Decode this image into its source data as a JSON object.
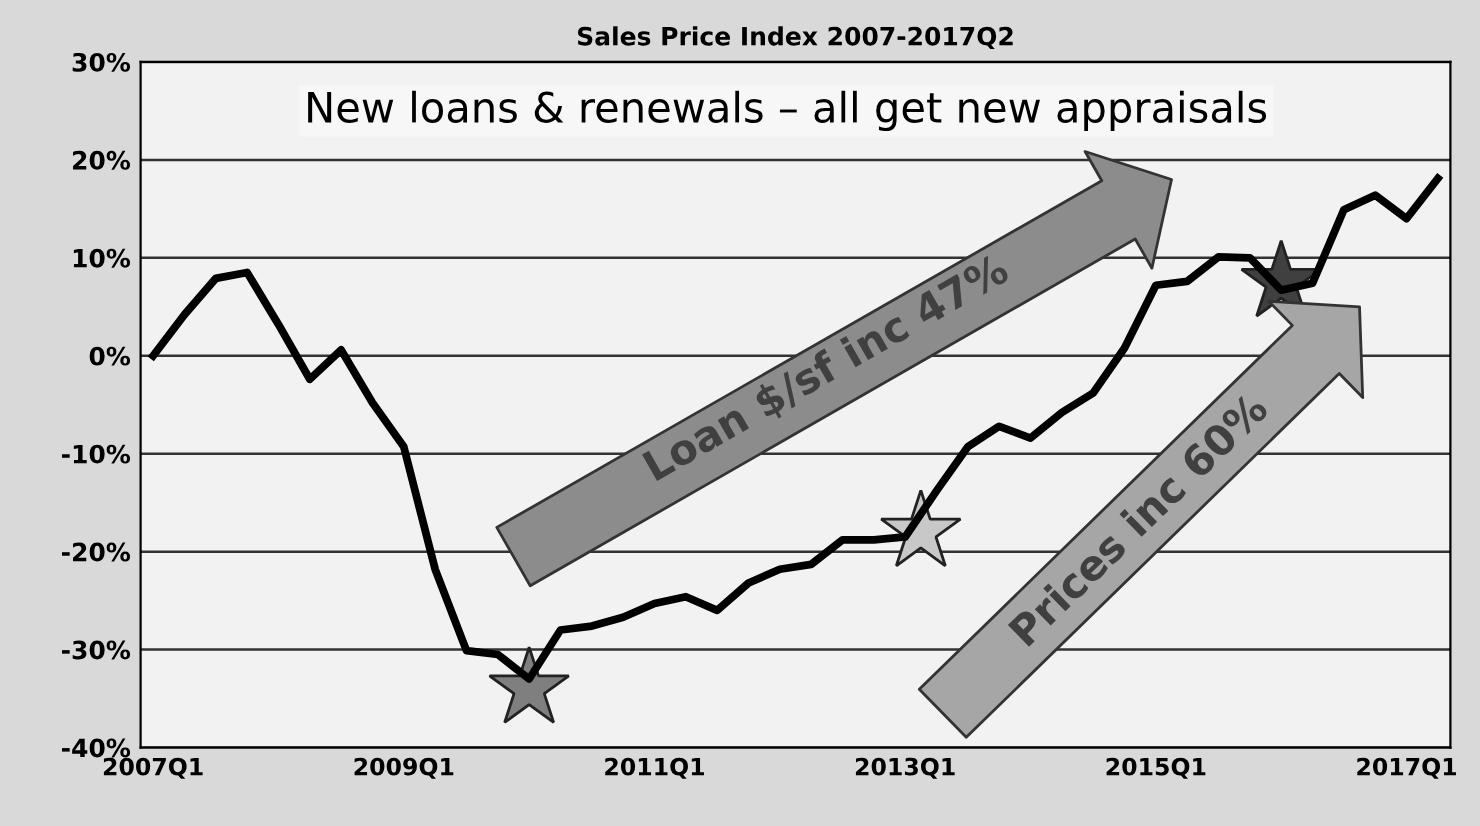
{
  "chart_data": {
    "type": "line",
    "title": "Sales Price Index 2007-2017Q2",
    "categories": [
      "2007Q1",
      null,
      null,
      null,
      null,
      null,
      null,
      null,
      "2009Q1",
      null,
      null,
      null,
      null,
      null,
      null,
      null,
      "2011Q1",
      null,
      null,
      null,
      null,
      null,
      null,
      null,
      "2013Q1",
      null,
      null,
      null,
      null,
      null,
      null,
      null,
      "2015Q1",
      null,
      null,
      null,
      null,
      null,
      null,
      null,
      "2017Q1",
      null
    ],
    "series": [
      {
        "color": "#000000",
        "values": [
          0,
          4.2,
          7.9,
          8.5,
          3.2,
          -2.4,
          0.6,
          -4.8,
          -9.3,
          -21.8,
          -30.1,
          -30.5,
          -33,
          -28,
          -27.6,
          -26.7,
          -25.3,
          -24.6,
          -26,
          -23.2,
          -21.8,
          -21.3,
          -18.8,
          -18.8,
          -18.5,
          -13.8,
          -9.3,
          -7.2,
          -8.4,
          -5.8,
          -3.8,
          0.8,
          7.2,
          7.6,
          10.1,
          10,
          6.7,
          7.4,
          14.9,
          16.4,
          14,
          18.1
        ]
      }
    ],
    "ylim": [
      -40,
      30
    ],
    "yticks": [
      {
        "value": -40,
        "label": "-40%"
      },
      {
        "value": -30,
        "label": "-30%"
      },
      {
        "value": -20,
        "label": "-20%"
      },
      {
        "value": -10,
        "label": "-10%"
      },
      {
        "value": 0,
        "label": "0%"
      },
      {
        "value": 10,
        "label": "10%"
      },
      {
        "value": 20,
        "label": "20%"
      },
      {
        "value": 30,
        "label": "30%"
      }
    ],
    "grid": "y",
    "marker": "none",
    "line_style": "solid",
    "legend": false,
    "annotations": [
      "New loans & renewals – all get new appraisals",
      "Loan $/sf inc 47%",
      "Prices inc 60%"
    ]
  }
}
